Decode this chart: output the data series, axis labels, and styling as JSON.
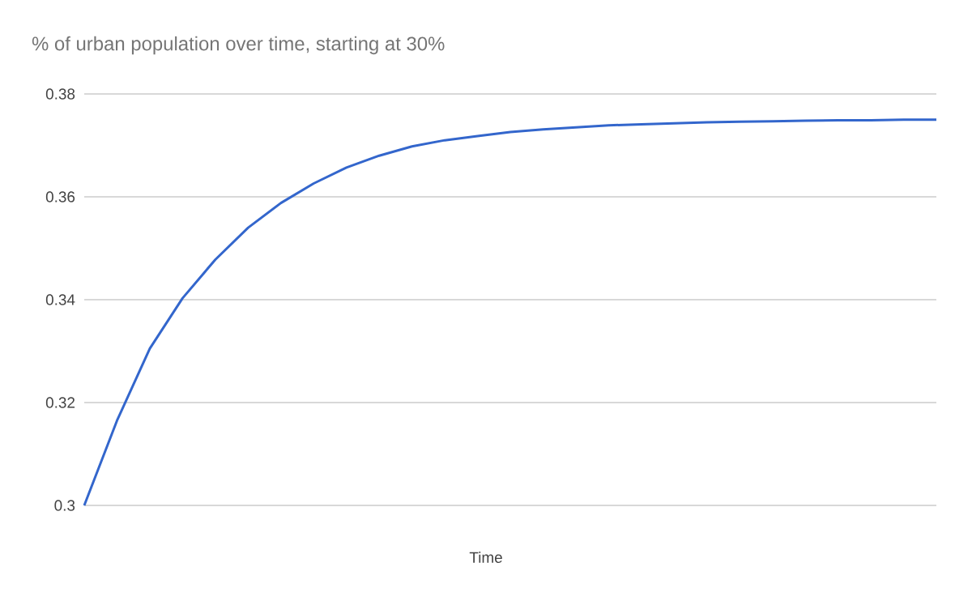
{
  "chart_data": {
    "type": "line",
    "title": "% of urban population over time, starting at 30%",
    "xlabel": "Time",
    "categories": [
      null,
      null,
      null,
      null,
      null,
      null,
      null,
      null,
      null,
      null,
      null,
      null,
      null,
      null,
      null,
      null,
      null,
      null,
      null,
      null,
      null,
      null,
      null,
      null,
      null,
      null,
      null
    ],
    "series": [
      {
        "color": "#3366cc",
        "values": [
          0.3,
          0.3165,
          0.3305,
          0.3403,
          0.3478,
          0.354,
          0.3588,
          0.3626,
          0.3657,
          0.368,
          0.3698,
          0.371,
          0.3718,
          0.3726,
          0.3731,
          0.3735,
          0.3739,
          0.3741,
          0.3743,
          0.3745,
          0.3746,
          0.3747,
          0.3748,
          0.3749,
          0.3749,
          0.375,
          0.375
        ]
      }
    ],
    "ylim": [
      0.3,
      0.38
    ],
    "yticks": [
      0.3,
      0.32,
      0.34,
      0.36,
      0.38
    ],
    "grid": "y",
    "tick_labels": "y"
  }
}
